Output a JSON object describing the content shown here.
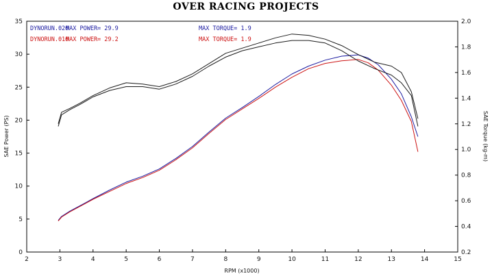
{
  "chart_data": {
    "type": "line",
    "title": "OVER RACING PROJECTS",
    "xlabel": "RPM (x1000)",
    "ylabel_left": "SAE Power (PS)",
    "ylabel_right": "SAE Torque (kg-m)",
    "xlim": [
      2,
      15
    ],
    "ylim_left": [
      0,
      35
    ],
    "ylim_right": [
      0.2,
      2.0
    ],
    "x_ticks": [
      "2",
      "3",
      "4",
      "5",
      "6",
      "7",
      "8",
      "9",
      "10",
      "11",
      "12",
      "13",
      "14",
      "15"
    ],
    "y_ticks_left": [
      "0",
      "5",
      "10",
      "15",
      "20",
      "25",
      "30",
      "35"
    ],
    "y_ticks_right": [
      "0.2",
      "0.4",
      "0.6",
      "0.8",
      "1.0",
      "1.2",
      "1.4",
      "1.6",
      "1.8",
      "2.0"
    ],
    "grid": false,
    "legend": [
      {
        "run": "DYNORUN.020",
        "power_label": "MAX POWER= 29.9",
        "torque_label": "MAX TORQUE= 1.9",
        "color": "#1a1aa0"
      },
      {
        "run": "DYNORUN.010",
        "power_label": "MAX POWER= 29.2",
        "torque_label": "MAX TORQUE= 1.9",
        "color": "#cc1111"
      }
    ],
    "series": [
      {
        "axis": "left",
        "color": "#1a1aa0",
        "x": [
          2.95,
          3.05,
          3.3,
          3.6,
          4.0,
          4.5,
          5.0,
          5.5,
          6.0,
          6.5,
          7.0,
          7.5,
          8.0,
          8.5,
          9.0,
          9.5,
          10.0,
          10.5,
          11.0,
          11.5,
          12.0,
          12.3,
          12.6,
          13.0,
          13.3,
          13.6,
          13.8
        ],
        "y": [
          4.8,
          5.4,
          6.2,
          7.0,
          8.1,
          9.4,
          10.6,
          11.5,
          12.6,
          14.2,
          16.0,
          18.2,
          20.3,
          21.9,
          23.6,
          25.4,
          27.0,
          28.2,
          29.1,
          29.7,
          29.9,
          29.4,
          28.4,
          26.2,
          24.0,
          20.5,
          17.5
        ]
      },
      {
        "axis": "left",
        "color": "#cc1111",
        "x": [
          2.95,
          3.05,
          3.3,
          3.6,
          4.0,
          4.5,
          5.0,
          5.5,
          6.0,
          6.5,
          7.0,
          7.5,
          8.0,
          8.5,
          9.0,
          9.5,
          10.0,
          10.5,
          11.0,
          11.5,
          12.0,
          12.3,
          12.6,
          13.0,
          13.3,
          13.6,
          13.8
        ],
        "y": [
          4.7,
          5.3,
          6.1,
          6.9,
          8.0,
          9.2,
          10.4,
          11.3,
          12.4,
          14.0,
          15.8,
          18.0,
          20.1,
          21.7,
          23.3,
          25.0,
          26.5,
          27.8,
          28.6,
          29.0,
          29.2,
          28.7,
          27.6,
          25.3,
          23.0,
          19.8,
          15.2
        ]
      },
      {
        "axis": "right",
        "color": "#1a1a1a",
        "x": [
          2.95,
          3.05,
          3.3,
          3.6,
          4.0,
          4.5,
          5.0,
          5.5,
          6.0,
          6.5,
          7.0,
          7.5,
          8.0,
          8.5,
          9.0,
          9.5,
          10.0,
          10.5,
          11.0,
          11.5,
          12.0,
          12.5,
          13.0,
          13.3,
          13.6,
          13.8
        ],
        "y": [
          1.2,
          1.29,
          1.32,
          1.36,
          1.42,
          1.48,
          1.52,
          1.51,
          1.49,
          1.53,
          1.59,
          1.67,
          1.75,
          1.79,
          1.83,
          1.87,
          1.9,
          1.89,
          1.86,
          1.81,
          1.74,
          1.68,
          1.65,
          1.6,
          1.45,
          1.24
        ]
      },
      {
        "axis": "right",
        "color": "#1a1a1a",
        "x": [
          2.95,
          3.05,
          3.3,
          3.6,
          4.0,
          4.5,
          5.0,
          5.5,
          6.0,
          6.5,
          7.0,
          7.5,
          8.0,
          8.5,
          9.0,
          9.5,
          10.0,
          10.5,
          11.0,
          11.5,
          12.0,
          12.5,
          13.0,
          13.3,
          13.6,
          13.8
        ],
        "y": [
          1.18,
          1.27,
          1.31,
          1.35,
          1.41,
          1.46,
          1.49,
          1.49,
          1.47,
          1.51,
          1.57,
          1.65,
          1.72,
          1.77,
          1.8,
          1.83,
          1.85,
          1.85,
          1.83,
          1.77,
          1.69,
          1.63,
          1.58,
          1.52,
          1.42,
          1.18
        ]
      }
    ]
  }
}
